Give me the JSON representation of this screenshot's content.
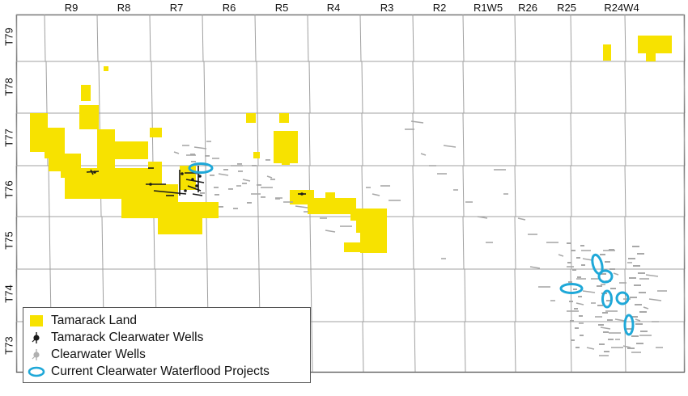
{
  "range_labels": [
    "R9",
    "R8",
    "R7",
    "R6",
    "R5",
    "R4",
    "R3",
    "R2",
    "R1W5",
    "R26",
    "R25",
    "R24W4"
  ],
  "township_labels": [
    "T79",
    "T78",
    "T77",
    "T76",
    "T75",
    "T74",
    "T73"
  ],
  "legend": {
    "items": [
      {
        "label": "Tamarack Land",
        "kind": "land"
      },
      {
        "label": "Tamarack Clearwater Wells",
        "kind": "tamarack-wells"
      },
      {
        "label": "Clearwater Wells",
        "kind": "clearwater-wells"
      },
      {
        "label": "Current Clearwater Waterflood Projects",
        "kind": "waterflood"
      }
    ]
  },
  "colors": {
    "land": "#f7e200",
    "tamarack_wells": "#1a1a1a",
    "clearwater_wells": "#a8a8a8",
    "waterflood": "#1fa8d8",
    "grid": "#a0a0a0"
  }
}
